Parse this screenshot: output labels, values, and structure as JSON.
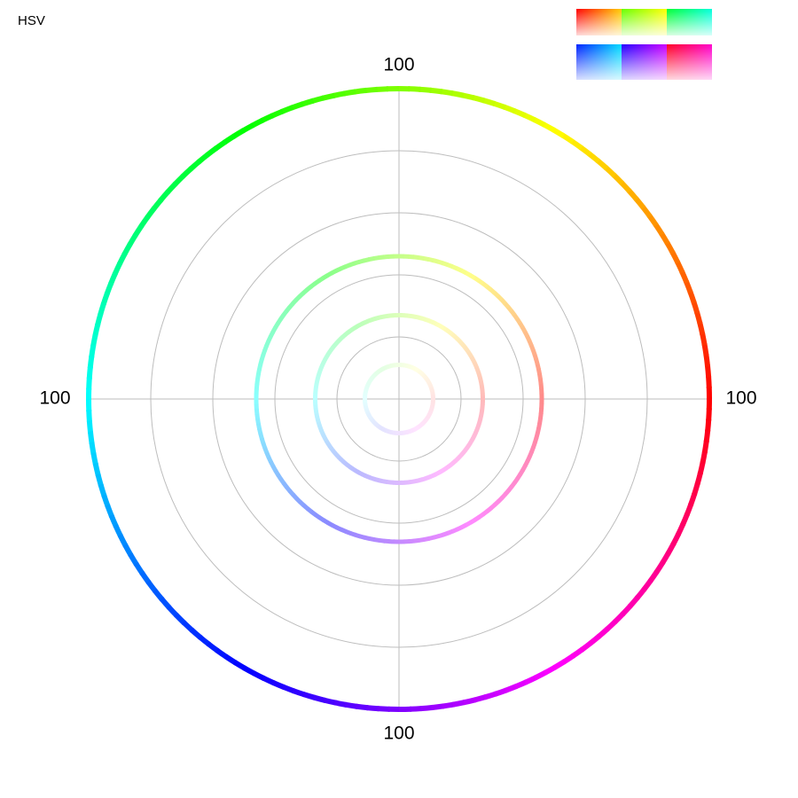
{
  "chart_data": {
    "type": "polar",
    "title": "HSV",
    "angle_labels": [
      "100",
      "100",
      "100",
      "100"
    ],
    "rlim": [
      0,
      100
    ],
    "rgrid": [
      20,
      40,
      60,
      80,
      100
    ],
    "values": [
      100,
      46,
      27,
      11
    ],
    "hue_lim": [
      0,
      360
    ]
  }
}
